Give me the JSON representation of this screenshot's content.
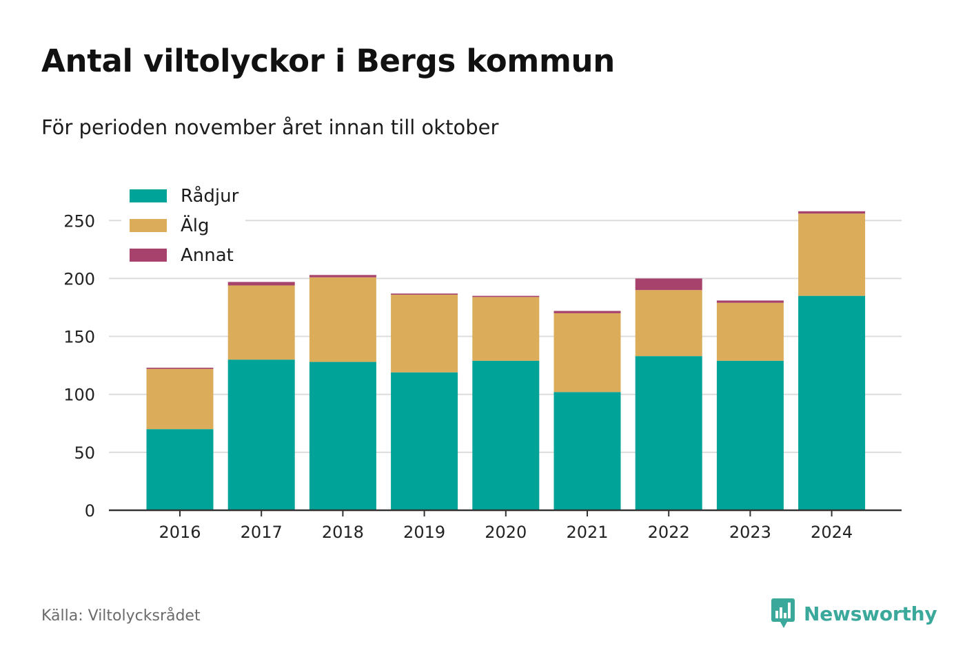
{
  "title": "Antal viltolyckor i Bergs kommun",
  "subtitle": "För perioden november året innan till oktober",
  "source": "Källa: Viltolycksrådet",
  "brand": {
    "name": "Newsworthy",
    "icon": "newsworthy-chart-icon",
    "color": "#3aa89a"
  },
  "chart_data": {
    "type": "bar",
    "stacked": true,
    "categories": [
      "2016",
      "2017",
      "2018",
      "2019",
      "2020",
      "2021",
      "2022",
      "2023",
      "2024"
    ],
    "series": [
      {
        "name": "Rådjur",
        "color": "#00a398",
        "values": [
          70,
          130,
          128,
          119,
          129,
          102,
          133,
          129,
          185
        ]
      },
      {
        "name": "Älg",
        "color": "#dbad5b",
        "values": [
          52,
          64,
          73,
          67,
          55,
          68,
          57,
          50,
          71
        ]
      },
      {
        "name": "Annat",
        "color": "#a6426b",
        "values": [
          1,
          3,
          2,
          1,
          1,
          2,
          10,
          2,
          2
        ]
      }
    ],
    "ylim": [
      0,
      260
    ],
    "yticks": [
      0,
      50,
      100,
      150,
      200,
      250
    ],
    "grid": true,
    "legend": "top-left",
    "xlabel": "",
    "ylabel": ""
  }
}
